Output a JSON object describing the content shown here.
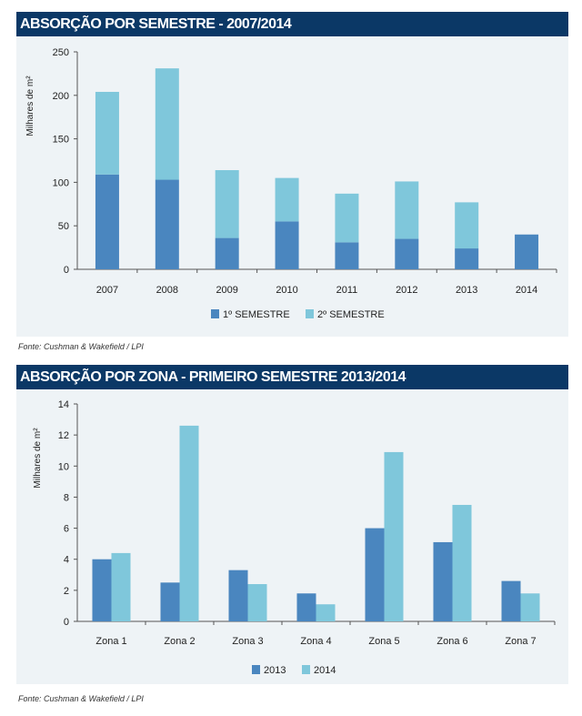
{
  "colors": {
    "header": "#0b3866",
    "series_dark": "#4a86bf",
    "series_light": "#7fc7db",
    "panel": "#eef3f6"
  },
  "chart_data": [
    {
      "type": "bar",
      "stacked": true,
      "title": "ABSORÇÃO POR SEMESTRE - 2007/2014",
      "ylabel": "Milhares de m²",
      "xlabel": "",
      "ylim": [
        0,
        250
      ],
      "yticks": [
        0,
        50,
        100,
        150,
        200,
        250
      ],
      "categories": [
        "2007",
        "2008",
        "2009",
        "2010",
        "2011",
        "2012",
        "2013",
        "2014"
      ],
      "series": [
        {
          "name": "1º SEMESTRE",
          "color": "#4a86bf",
          "values": [
            109,
            103,
            36,
            55,
            31,
            35,
            24,
            40
          ]
        },
        {
          "name": "2º SEMESTRE",
          "color": "#7fc7db",
          "values": [
            95,
            128,
            78,
            50,
            56,
            66,
            53,
            0
          ]
        }
      ],
      "legend": "bottom",
      "grid": false,
      "source": "Fonte: Cushman & Wakefield / LPI"
    },
    {
      "type": "bar",
      "stacked": false,
      "title": "ABSORÇÃO POR ZONA - PRIMEIRO SEMESTRE 2013/2014",
      "ylabel": "Milhares de m²",
      "xlabel": "",
      "ylim": [
        0,
        14
      ],
      "yticks": [
        0,
        2,
        4,
        6,
        8,
        10,
        12,
        14
      ],
      "categories": [
        "Zona 1",
        "Zona 2",
        "Zona 3",
        "Zona 4",
        "Zona 5",
        "Zona 6",
        "Zona 7"
      ],
      "series": [
        {
          "name": "2013",
          "color": "#4a86bf",
          "values": [
            4.0,
            2.5,
            3.3,
            1.8,
            6.0,
            5.1,
            2.6
          ]
        },
        {
          "name": "2014",
          "color": "#7fc7db",
          "values": [
            4.4,
            12.6,
            2.4,
            1.1,
            10.9,
            7.5,
            1.8
          ]
        }
      ],
      "legend": "bottom",
      "grid": false,
      "source": "Fonte: Cushman & Wakefield / LPI"
    }
  ]
}
